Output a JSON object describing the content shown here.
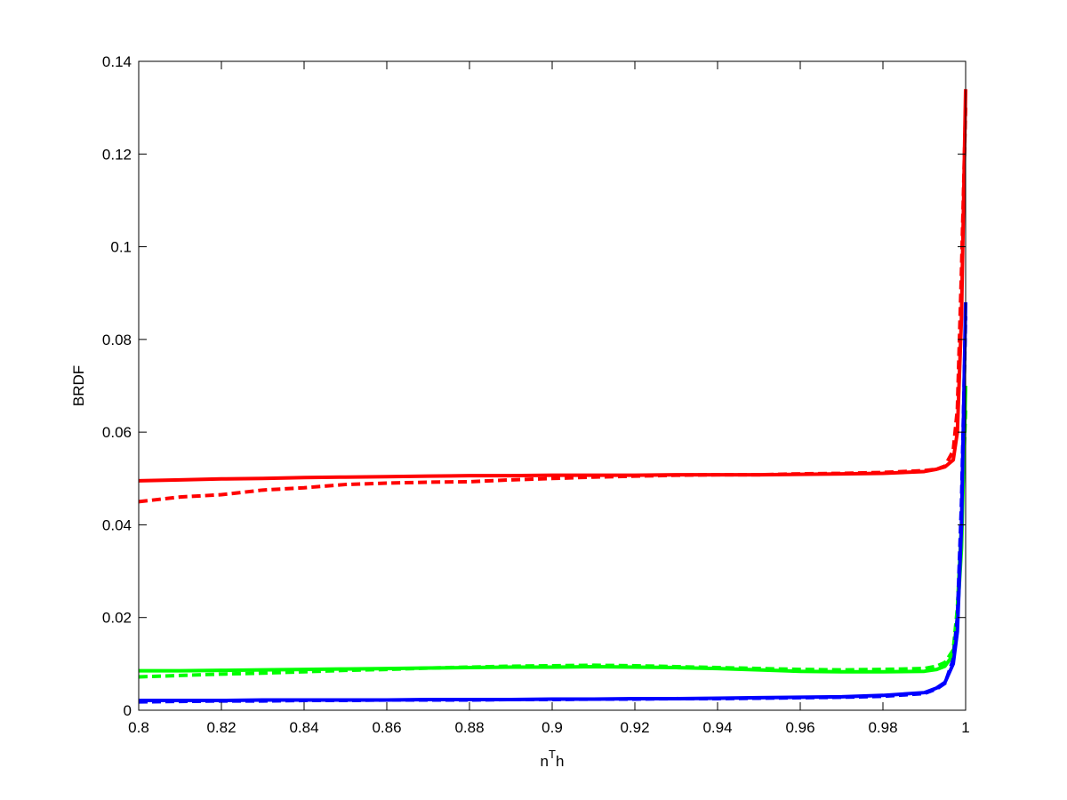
{
  "chart_data": {
    "type": "line",
    "xlabel": [
      "n",
      "T",
      "h"
    ],
    "ylabel": "BRDF",
    "x": [
      0.8,
      0.81,
      0.82,
      0.83,
      0.84,
      0.85,
      0.86,
      0.87,
      0.88,
      0.89,
      0.9,
      0.91,
      0.92,
      0.93,
      0.94,
      0.95,
      0.96,
      0.97,
      0.98,
      0.99,
      0.993,
      0.995,
      0.997,
      0.998,
      0.999,
      1
    ],
    "series": [
      {
        "color": "#ff0000",
        "dashed": false,
        "values": [
          0.0495,
          0.0497,
          0.0499,
          0.05,
          0.0502,
          0.0503,
          0.0504,
          0.0505,
          0.0506,
          0.0506,
          0.0507,
          0.0507,
          0.0507,
          0.0508,
          0.0508,
          0.0508,
          0.0509,
          0.051,
          0.0511,
          0.0515,
          0.052,
          0.0525,
          0.054,
          0.06,
          0.085,
          0.134
        ]
      },
      {
        "color": "#ff0000",
        "dashed": true,
        "values": [
          0.045,
          0.046,
          0.0465,
          0.0475,
          0.048,
          0.0487,
          0.049,
          0.0492,
          0.0493,
          0.0497,
          0.05,
          0.0503,
          0.0505,
          0.0507,
          0.0508,
          0.0508,
          0.051,
          0.0511,
          0.0513,
          0.0517,
          0.052,
          0.0527,
          0.056,
          0.065,
          0.095,
          0.13
        ]
      },
      {
        "color": "#00ff00",
        "dashed": false,
        "values": [
          0.0085,
          0.0085,
          0.0086,
          0.0087,
          0.0088,
          0.0089,
          0.009,
          0.0091,
          0.0092,
          0.0093,
          0.0093,
          0.0094,
          0.0093,
          0.0092,
          0.009,
          0.0087,
          0.0084,
          0.0083,
          0.0083,
          0.0084,
          0.0088,
          0.0095,
          0.012,
          0.02,
          0.035,
          0.07
        ]
      },
      {
        "color": "#00ff00",
        "dashed": true,
        "values": [
          0.0072,
          0.0075,
          0.0078,
          0.008,
          0.0083,
          0.0086,
          0.0088,
          0.0091,
          0.0093,
          0.0095,
          0.0096,
          0.0097,
          0.0096,
          0.0094,
          0.0092,
          0.009,
          0.0088,
          0.0087,
          0.0088,
          0.009,
          0.0095,
          0.0103,
          0.013,
          0.022,
          0.04,
          0.065
        ]
      },
      {
        "color": "#0000ff",
        "dashed": false,
        "values": [
          0.0021,
          0.0021,
          0.0021,
          0.0022,
          0.0022,
          0.0022,
          0.0022,
          0.0023,
          0.0023,
          0.0023,
          0.0024,
          0.0024,
          0.0025,
          0.0025,
          0.0026,
          0.0027,
          0.0028,
          0.0029,
          0.0032,
          0.0038,
          0.0048,
          0.006,
          0.01,
          0.017,
          0.04,
          0.088
        ]
      },
      {
        "color": "#0000ff",
        "dashed": true,
        "values": [
          0.0018,
          0.0019,
          0.002,
          0.002,
          0.0021,
          0.0021,
          0.0022,
          0.0022,
          0.0022,
          0.0023,
          0.0023,
          0.0024,
          0.0024,
          0.0025,
          0.0025,
          0.0026,
          0.0027,
          0.0028,
          0.003,
          0.0036,
          0.0046,
          0.0058,
          0.011,
          0.02,
          0.045,
          0.085
        ]
      }
    ],
    "xlim": [
      0.8,
      1
    ],
    "xticks": [
      0.8,
      0.82,
      0.84,
      0.86,
      0.88,
      0.9,
      0.92,
      0.94,
      0.96,
      0.98,
      1
    ],
    "ylim": [
      0,
      0.14
    ],
    "yticks": [
      0,
      0.02,
      0.04,
      0.06,
      0.08,
      0.1,
      0.12,
      0.14
    ],
    "grid": false
  }
}
